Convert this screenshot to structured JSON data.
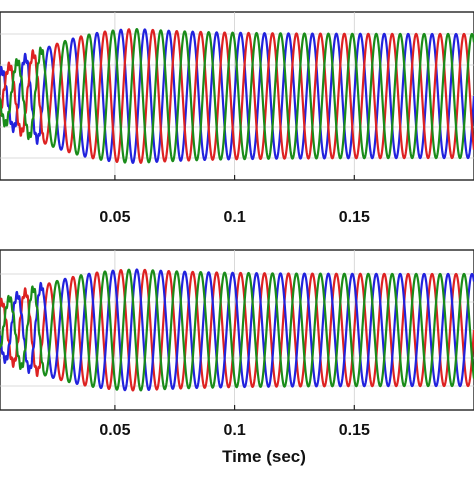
{
  "chart_data": [
    {
      "type": "line",
      "title": "",
      "xlabel": "",
      "ylabel": "",
      "x_ticks": [
        "0.05",
        "0.1",
        "0.15"
      ],
      "x_tick_values": [
        0.05,
        0.1,
        0.15
      ],
      "xlim": [
        0.002,
        0.2
      ],
      "grid": true,
      "series": [
        {
          "color": "#2222dd",
          "waveform": {
            "frequency_hz": 100,
            "phase_deg": 0,
            "initial_amplitude": 0.35,
            "final_amplitude": 1.0,
            "peak_time": 0.06,
            "overshoot": 1.08
          }
        },
        {
          "color": "#dd2222",
          "waveform": {
            "frequency_hz": 100,
            "phase_deg": 240,
            "initial_amplitude": 0.35,
            "final_amplitude": 1.0,
            "peak_time": 0.06,
            "overshoot": 1.08
          }
        },
        {
          "color": "#1a8c1a",
          "waveform": {
            "frequency_hz": 100,
            "phase_deg": 120,
            "initial_amplitude": 0.35,
            "final_amplitude": 1.0,
            "peak_time": 0.06,
            "overshoot": 1.08
          }
        }
      ]
    },
    {
      "type": "line",
      "title": "",
      "xlabel": "Time (sec)",
      "ylabel": "",
      "x_ticks": [
        "0.05",
        "0.1",
        "0.15"
      ],
      "x_tick_values": [
        0.05,
        0.1,
        0.15
      ],
      "xlim": [
        0.002,
        0.2
      ],
      "grid": true,
      "series": [
        {
          "color": "#dd2222",
          "waveform": {
            "frequency_hz": 100,
            "phase_deg": 0,
            "initial_amplitude": 0.45,
            "final_amplitude": 1.0,
            "peak_time": 0.06,
            "overshoot": 1.08
          }
        },
        {
          "color": "#2222dd",
          "waveform": {
            "frequency_hz": 100,
            "phase_deg": 120,
            "initial_amplitude": 0.45,
            "final_amplitude": 1.0,
            "peak_time": 0.06,
            "overshoot": 1.08
          }
        },
        {
          "color": "#1a8c1a",
          "waveform": {
            "frequency_hz": 100,
            "phase_deg": 240,
            "initial_amplitude": 0.45,
            "final_amplitude": 1.0,
            "peak_time": 0.06,
            "overshoot": 1.08
          }
        }
      ]
    }
  ]
}
